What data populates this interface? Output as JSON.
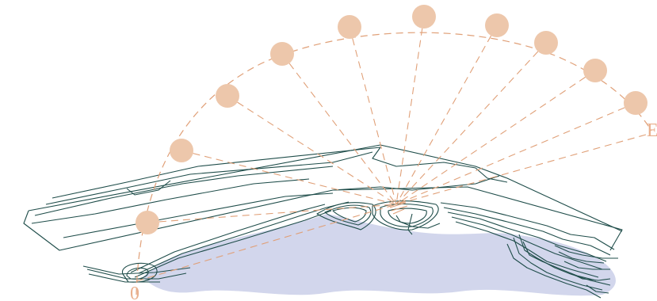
{
  "labels": {
    "start": "0",
    "end": "E"
  },
  "colors": {
    "sun": "#edc7ab",
    "ray": "#e0a078",
    "contour": "#1f4d4a",
    "shadow": "#d2d6ec",
    "label": "#e9b08e"
  }
}
